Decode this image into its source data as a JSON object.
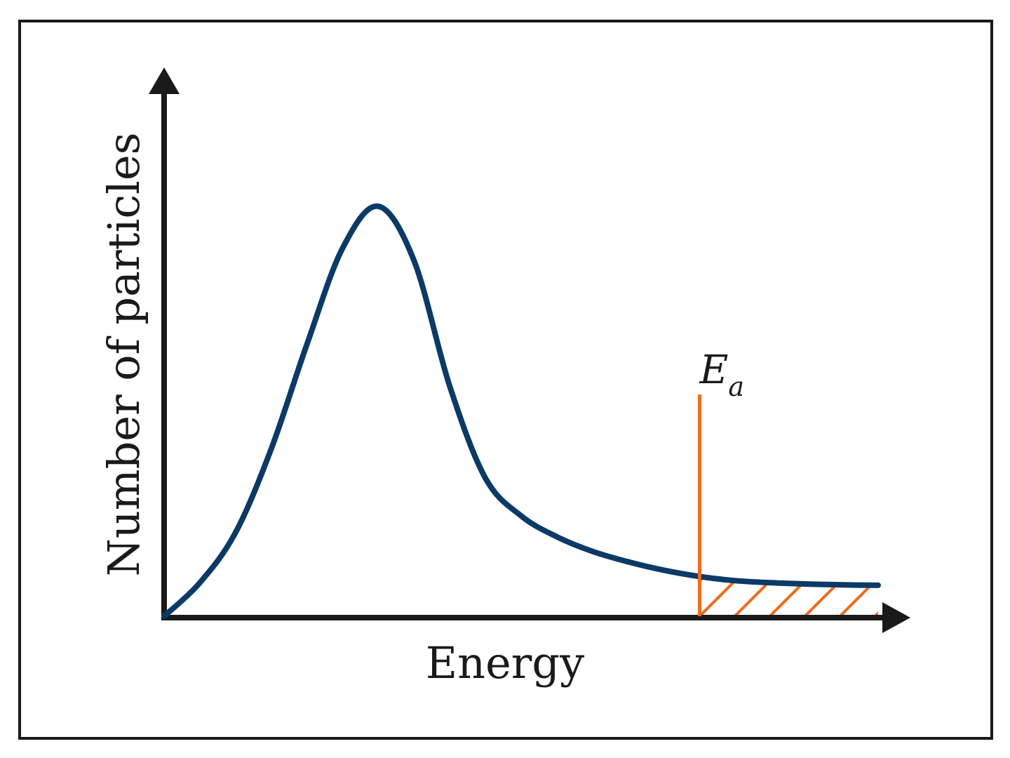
{
  "chart_data": {
    "type": "line",
    "title": "",
    "xlabel": "Energy",
    "ylabel": "Number of particles",
    "xlim": [
      0,
      10
    ],
    "ylim": [
      0,
      1
    ],
    "grid": false,
    "series": [
      {
        "color": "#0b3a66",
        "x": [
          0,
          0.5,
          1.0,
          1.5,
          2.0,
          2.5,
          3.0,
          3.5,
          4.0,
          4.5,
          5.0,
          5.5,
          6.0,
          6.5,
          7.0,
          7.5,
          8.0,
          8.5,
          9.0,
          9.5,
          10.0
        ],
        "y": [
          0.0,
          0.08,
          0.2,
          0.4,
          0.65,
          0.88,
          0.98,
          0.85,
          0.55,
          0.33,
          0.24,
          0.19,
          0.155,
          0.13,
          0.11,
          0.095,
          0.085,
          0.08,
          0.077,
          0.075,
          0.074
        ]
      }
    ],
    "annotations": [
      {
        "type": "vline",
        "x": 7.5,
        "y_top": 0.53,
        "color": "#f26a1b",
        "label": "E",
        "label_subscript": "a",
        "hatch_region": "x > Ea under curve"
      }
    ]
  }
}
